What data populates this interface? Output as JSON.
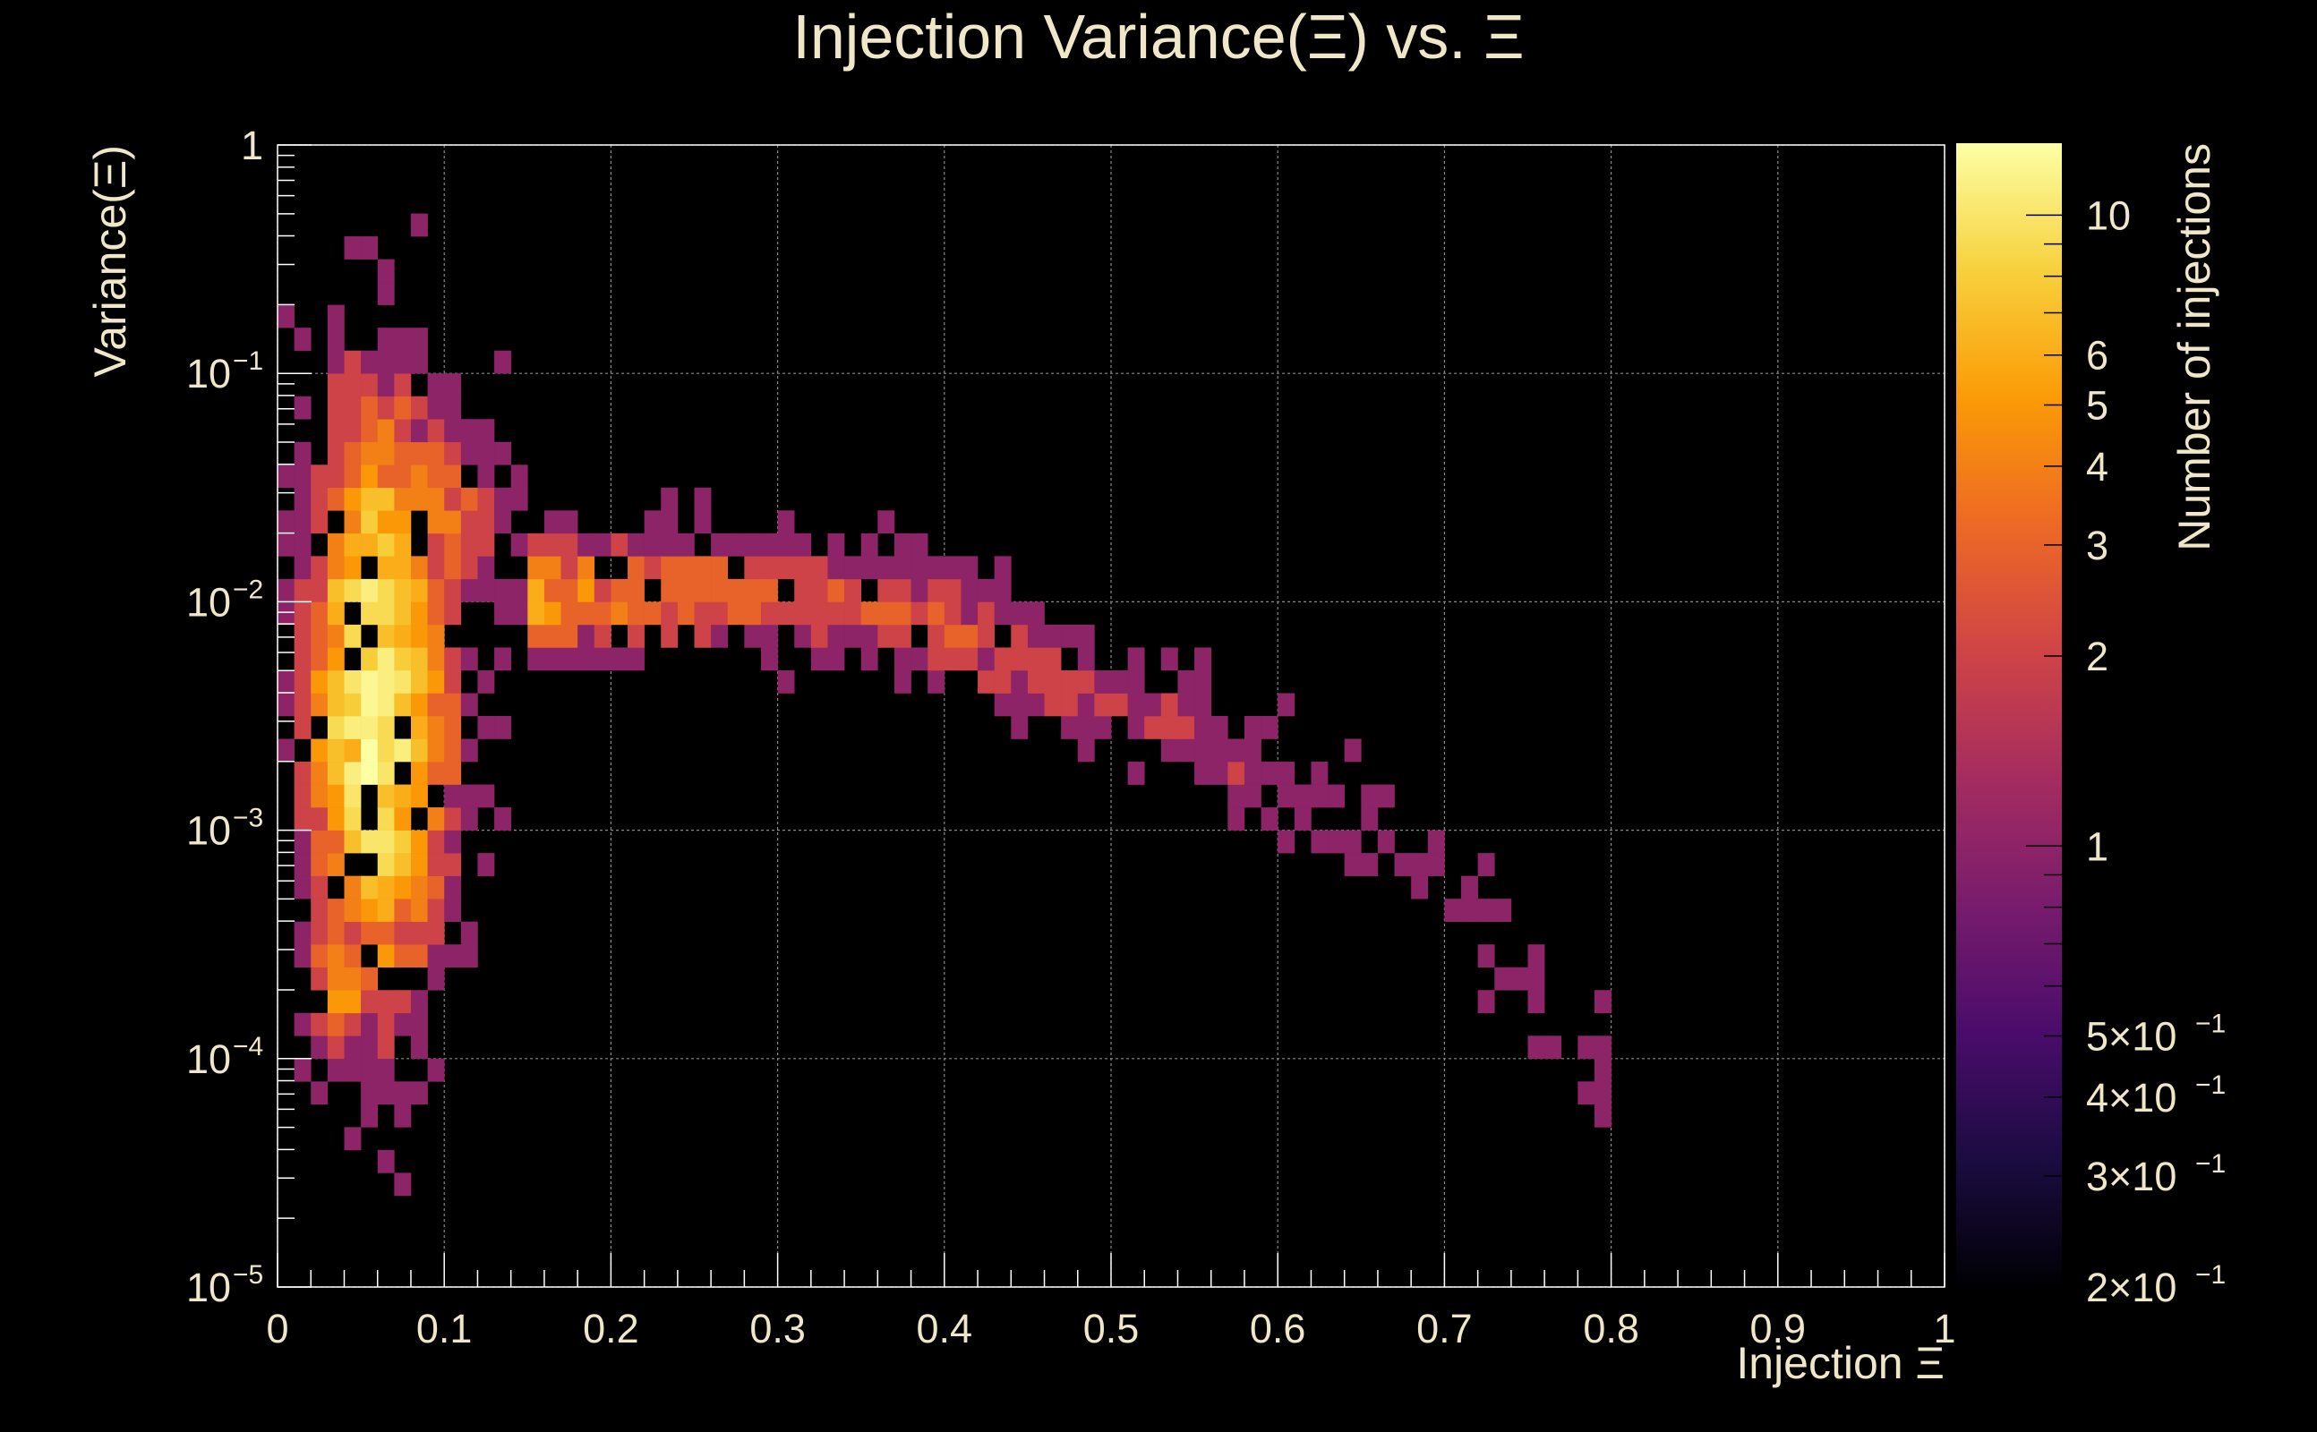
{
  "chart_data": {
    "type": "heatmap",
    "title": "Injection Variance(Ξ) vs. Ξ",
    "xlabel": "Injection Ξ",
    "ylabel": "Variance(Ξ)",
    "zlabel": "Number of injections",
    "xlim": [
      0,
      1
    ],
    "ylim": [
      1e-05,
      1
    ],
    "ylog": true,
    "zlim": [
      0.2,
      13
    ],
    "zlog": true,
    "grid": true,
    "x_ticks": [
      "0",
      "0.1",
      "0.2",
      "0.3",
      "0.4",
      "0.5",
      "0.6",
      "0.7",
      "0.8",
      "0.9",
      "1"
    ],
    "y_ticks": [
      {
        "base": "1",
        "exp": ""
      },
      {
        "base": "10",
        "exp": "−1"
      },
      {
        "base": "10",
        "exp": "−2"
      },
      {
        "base": "10",
        "exp": "−3"
      },
      {
        "base": "10",
        "exp": "−4"
      },
      {
        "base": "10",
        "exp": "−5"
      }
    ],
    "z_ticks": [
      {
        "value": 10,
        "label": "10"
      },
      {
        "value": 6,
        "label": "6"
      },
      {
        "value": 5,
        "label": "5"
      },
      {
        "value": 4,
        "label": "4"
      },
      {
        "value": 3,
        "label": "3"
      },
      {
        "value": 2,
        "label": "2"
      },
      {
        "value": 1,
        "label": "1"
      },
      {
        "value": 0.5,
        "label": "5×10",
        "exp": "−1"
      },
      {
        "value": 0.4,
        "label": "4×10",
        "exp": "−1"
      },
      {
        "value": 0.3,
        "label": "3×10",
        "exp": "−1"
      },
      {
        "value": 0.2,
        "label": "2×10",
        "exp": "−1"
      }
    ],
    "palette": [
      "#000004",
      "#1b0c41",
      "#4a0c6b",
      "#781c6d",
      "#a52c60",
      "#cf4446",
      "#ed6925",
      "#fb9b06",
      "#f7d13d",
      "#fcffa4"
    ],
    "bins": {
      "x_bins": 100,
      "log_variance_bins": 50,
      "log_variance_range": [
        -5,
        0
      ],
      "max_count": 13,
      "clusters": [
        {
          "x_center": 0.06,
          "log_var_center": -2.4,
          "x_spread": 0.025,
          "log_var_spread": 0.75,
          "peak": 13
        },
        {
          "x_center": 0.09,
          "log_var_center": -1.6,
          "x_spread": 0.03,
          "log_var_spread": 0.3,
          "peak": 4
        },
        {
          "x_center": 0.04,
          "log_var_center": -3.6,
          "x_spread": 0.015,
          "log_var_spread": 0.3,
          "peak": 5
        }
      ],
      "ridge": [
        {
          "x": 0.15,
          "log_var": -2.0,
          "count": 6
        },
        {
          "x": 0.2,
          "log_var": -1.95,
          "count": 4
        },
        {
          "x": 0.3,
          "log_var": -1.95,
          "count": 3
        },
        {
          "x": 0.4,
          "log_var": -2.1,
          "count": 3
        },
        {
          "x": 0.5,
          "log_var": -2.4,
          "count": 2
        },
        {
          "x": 0.6,
          "log_var": -2.8,
          "count": 1.5
        },
        {
          "x": 0.7,
          "log_var": -3.3,
          "count": 1
        },
        {
          "x": 0.8,
          "log_var": -4.1,
          "count": 1
        }
      ]
    }
  }
}
